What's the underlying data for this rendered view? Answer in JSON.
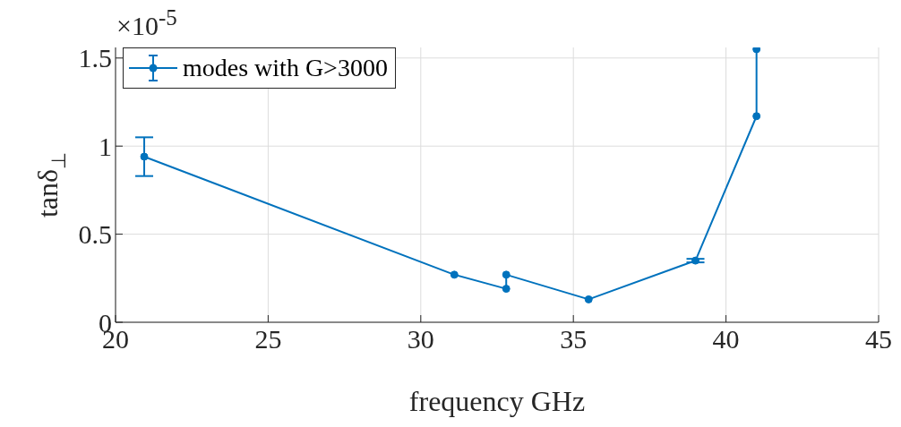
{
  "chart_data": {
    "type": "line",
    "xlabel": "frequency GHz",
    "ylabel": "tanδ$_{⊥}$",
    "annotations": [
      "×10$^{-5}$"
    ],
    "x": [
      20.94,
      31.1,
      32.8,
      32.8,
      35.5,
      39.0,
      41.0,
      41.0
    ],
    "series": [
      {
        "name": "modes with G>3000",
        "color": "#0072bd",
        "values": [
          0.94,
          0.27,
          0.19,
          0.27,
          0.13,
          0.35,
          1.17,
          1.55
        ],
        "errors": [
          [
            0.83,
            1.05
          ],
          null,
          null,
          null,
          null,
          0.01,
          null,
          null
        ]
      }
    ],
    "xlim": [
      20,
      45
    ],
    "xticks": [
      20,
      25,
      30,
      35,
      40,
      45
    ],
    "ylim": [
      0,
      1.56
    ],
    "yticks": [
      0,
      0.5,
      1,
      1.5
    ],
    "grid": true,
    "legend": "top left",
    "marker": "circle",
    "line_style": "solid"
  }
}
